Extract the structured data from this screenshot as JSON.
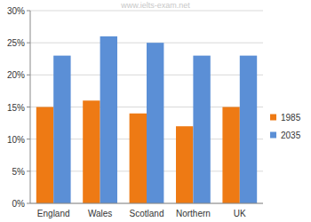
{
  "chart_data": {
    "type": "bar",
    "annotations": [
      "www.ielts-exam.net"
    ],
    "categories": [
      "England",
      "Wales",
      "Scotland",
      "Northern",
      "UK"
    ],
    "series": [
      {
        "name": "1985",
        "color": "#ee7a14",
        "values": [
          15,
          16,
          14,
          12,
          15
        ]
      },
      {
        "name": "2035",
        "color": "#5b8fd6",
        "values": [
          23,
          26,
          25,
          23,
          23
        ]
      }
    ],
    "ylim": [
      0,
      30
    ],
    "yticks": [
      {
        "value": 0,
        "label": "0%"
      },
      {
        "value": 5,
        "label": "5%"
      },
      {
        "value": 10,
        "label": "10%"
      },
      {
        "value": 15,
        "label": "15%"
      },
      {
        "value": 20,
        "label": "20%"
      },
      {
        "value": 25,
        "label": "25%"
      },
      {
        "value": 30,
        "label": "30%"
      }
    ],
    "grid": true,
    "legend": "right"
  }
}
